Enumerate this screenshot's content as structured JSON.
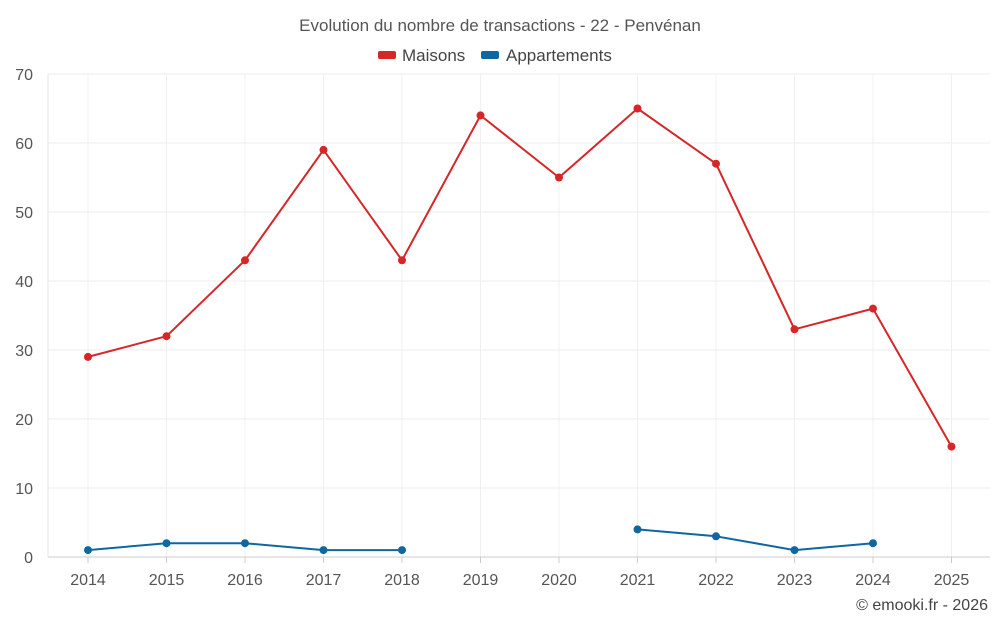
{
  "chart_data": {
    "type": "line",
    "title": "Evolution du nombre de transactions - 22 - Penvénan",
    "xlabel": "",
    "ylabel": "",
    "ylim": [
      0,
      70
    ],
    "yticks": [
      0,
      10,
      20,
      30,
      40,
      50,
      60,
      70
    ],
    "categories": [
      "2014",
      "2015",
      "2016",
      "2017",
      "2018",
      "2019",
      "2020",
      "2021",
      "2022",
      "2023",
      "2024",
      "2025"
    ],
    "grid": true,
    "legend_position": "top-center",
    "series": [
      {
        "name": "Maisons",
        "color": "#d62728",
        "values": [
          29,
          32,
          43,
          59,
          43,
          64,
          55,
          65,
          57,
          33,
          36,
          16
        ]
      },
      {
        "name": "Appartements",
        "color": "#0f67a0",
        "values": [
          1,
          2,
          2,
          1,
          1,
          null,
          null,
          4,
          3,
          1,
          2,
          null
        ]
      }
    ],
    "credit": "© emooki.fr - 2026"
  }
}
